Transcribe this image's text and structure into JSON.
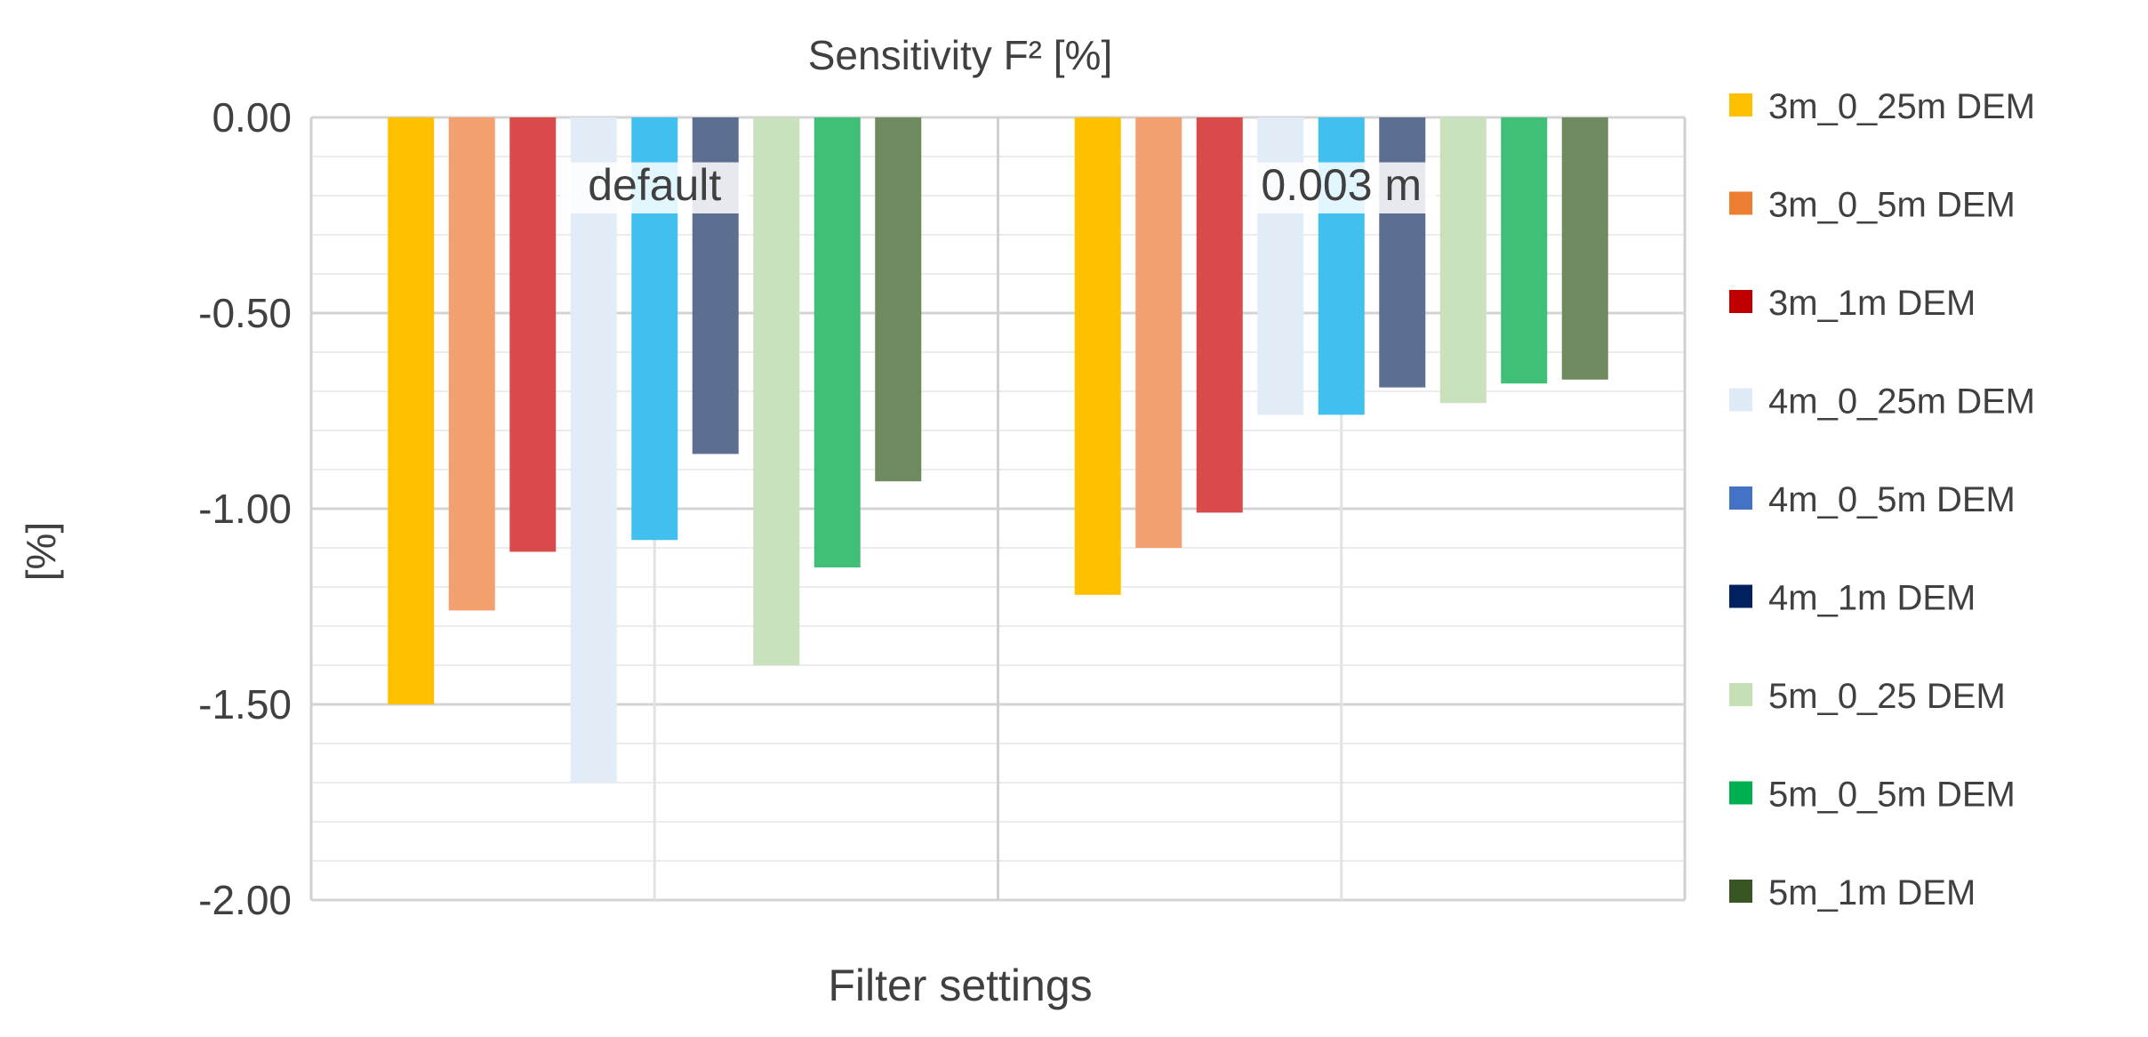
{
  "chart_data": {
    "type": "bar",
    "title": "Sensitivity F² [%]",
    "xlabel": "Filter settings",
    "ylabel": "[%]",
    "ylim": [
      -2.0,
      0.0
    ],
    "yticks": [
      "0.00",
      "-0.50",
      "-1.00",
      "-1.50",
      "-2.00"
    ],
    "grid": true,
    "legend_position": "right",
    "categories": [
      "default",
      "0.003 m"
    ],
    "series": [
      {
        "name": "3m_0_25m DEM",
        "color": "#FFC000",
        "legend_color": "#FFC000",
        "values": [
          -1.5,
          -1.22
        ]
      },
      {
        "name": "3m_0_5m DEM",
        "color": "#F4A06E",
        "legend_color": "#ED7D31",
        "values": [
          -1.26,
          -1.1
        ]
      },
      {
        "name": "3m_1m DEM",
        "color": "#D94B4B",
        "legend_color": "#C00000",
        "values": [
          -1.11,
          -1.01
        ]
      },
      {
        "name": "4m_0_25m DEM",
        "color": "#E1ECF7",
        "legend_color": "#DEEBF7",
        "values": [
          -1.7,
          -0.76
        ]
      },
      {
        "name": "4m_0_5m DEM",
        "color": "#41C0F0",
        "legend_color": "#4472C4",
        "values": [
          -1.08,
          -0.76
        ]
      },
      {
        "name": "4m_1m DEM",
        "color": "#5D6F91",
        "legend_color": "#002060",
        "values": [
          -0.86,
          -0.69
        ]
      },
      {
        "name": "5m_0_25 DEM",
        "color": "#C9E2BD",
        "legend_color": "#C5E0B4",
        "values": [
          -1.4,
          -0.73
        ]
      },
      {
        "name": "5m_0_5m DEM",
        "color": "#40BF77",
        "legend_color": "#00B050",
        "values": [
          -1.15,
          -0.68
        ]
      },
      {
        "name": "5m_1m DEM",
        "color": "#6E8A5E",
        "legend_color": "#375623",
        "values": [
          -0.93,
          -0.67
        ]
      }
    ]
  }
}
